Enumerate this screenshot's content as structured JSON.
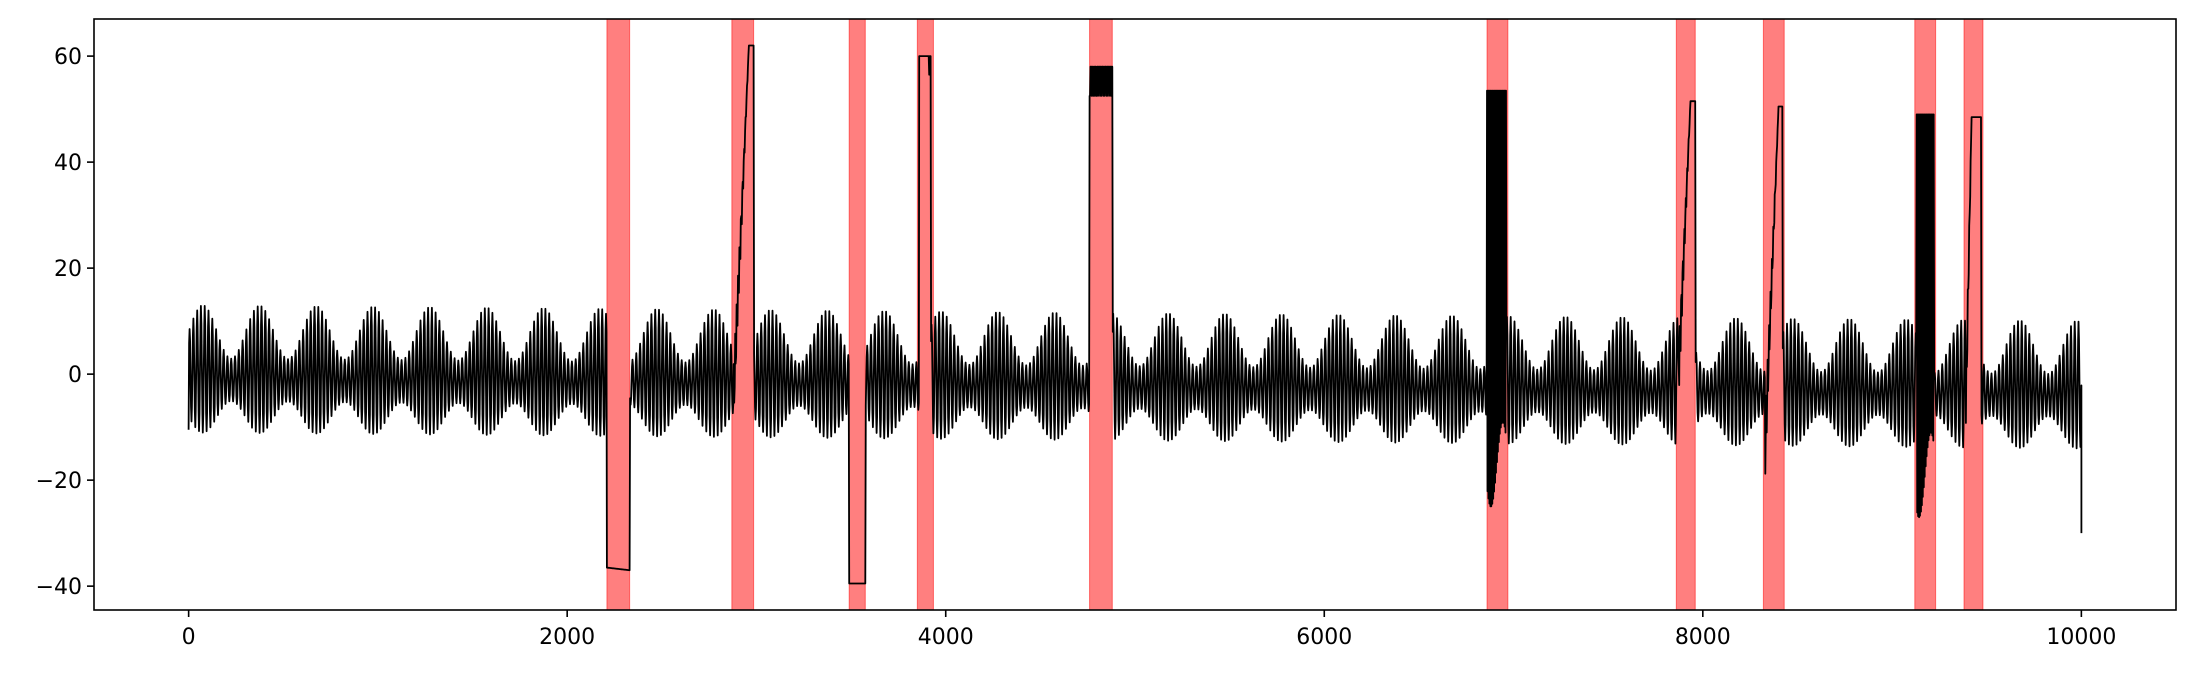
{
  "chart_data": {
    "type": "line",
    "title": "",
    "xlabel": "",
    "ylabel": "",
    "xlim": [
      -500,
      10500
    ],
    "ylim": [
      -44.5,
      67
    ],
    "grid": false,
    "legend": "none",
    "x_ticks": [
      0,
      2000,
      4000,
      6000,
      8000,
      10000
    ],
    "x_tick_labels": [
      "0",
      "2000",
      "4000",
      "6000",
      "8000",
      "10000"
    ],
    "y_ticks": [
      -40,
      -20,
      0,
      20,
      40,
      60
    ],
    "y_tick_labels": [
      "−40",
      "−20",
      "0",
      "20",
      "40",
      "60"
    ],
    "series": [
      {
        "color": "#000000",
        "x_range": [
          0,
          10000
        ],
        "baseline": {
          "oscillation_period": 20,
          "envelope_period": 300,
          "amplitude_min": 4,
          "amplitude_max": 12,
          "start_value": -10.5,
          "end_value": -30
        },
        "segments": [
          {
            "x": [
              2210,
              2330
            ],
            "level": -36.5,
            "end_level": -37
          },
          {
            "x": [
              2880,
              2985
            ],
            "level": 62,
            "ramp_from": -4,
            "ramp_to_x": 2960
          },
          {
            "x": [
              3490,
              3575
            ],
            "level": -39.5
          },
          {
            "x": [
              3860,
              3920
            ],
            "level": 60,
            "dip": 56.5
          },
          {
            "x": [
              4760,
              4880
            ],
            "level": 58,
            "noise_to": 52.5
          },
          {
            "x": [
              6860,
              6960
            ],
            "level": 53.5,
            "osc_to": -17,
            "fast": true
          },
          {
            "x": [
              7870,
              7960
            ],
            "level": 51.5,
            "ramp_from": -1,
            "ramp_to_x": 7935
          },
          {
            "x": [
              8330,
              8420
            ],
            "level": 50.5,
            "ramp_from": -13,
            "ramp_to_x": 8400
          },
          {
            "x": [
              9130,
              9220
            ],
            "level": 49,
            "osc_to": -19,
            "fast": true
          },
          {
            "x": [
              9390,
              9470
            ],
            "level": 48.5,
            "ramp_from": -6,
            "ramp_to_x": 9420
          }
        ]
      }
    ],
    "highlight_bands": [
      {
        "x0": 2210,
        "x1": 2330,
        "color": "#ff0000",
        "alpha": 0.5
      },
      {
        "x0": 2870,
        "x1": 2985,
        "color": "#ff0000",
        "alpha": 0.5
      },
      {
        "x0": 3490,
        "x1": 3575,
        "color": "#ff0000",
        "alpha": 0.5
      },
      {
        "x0": 3850,
        "x1": 3935,
        "color": "#ff0000",
        "alpha": 0.5
      },
      {
        "x0": 4760,
        "x1": 4880,
        "color": "#ff0000",
        "alpha": 0.5
      },
      {
        "x0": 6860,
        "x1": 6970,
        "color": "#ff0000",
        "alpha": 0.5
      },
      {
        "x0": 7860,
        "x1": 7960,
        "color": "#ff0000",
        "alpha": 0.5
      },
      {
        "x0": 8320,
        "x1": 8430,
        "color": "#ff0000",
        "alpha": 0.5
      },
      {
        "x0": 9120,
        "x1": 9230,
        "color": "#ff0000",
        "alpha": 0.5
      },
      {
        "x0": 9380,
        "x1": 9480,
        "color": "#ff0000",
        "alpha": 0.5
      }
    ]
  }
}
